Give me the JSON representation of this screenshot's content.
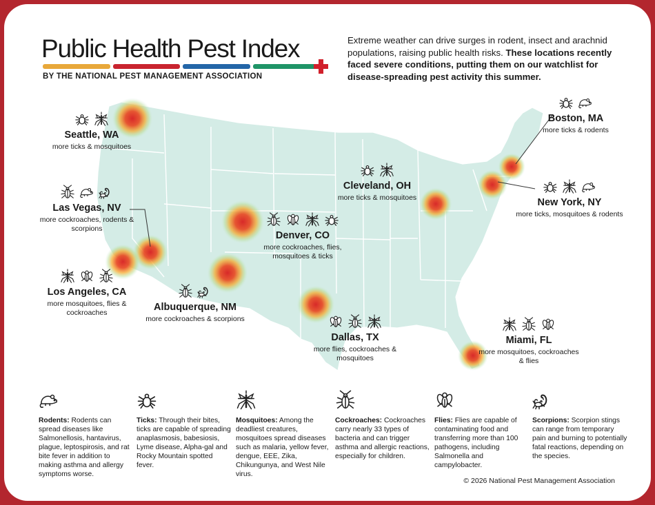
{
  "header": {
    "title": "Public Health Pest Index",
    "subtitle": "BY THE NATIONAL PEST MANAGEMENT ASSOCIATION",
    "bar_colors": [
      "#e8a83a",
      "#c9242f",
      "#2366a8",
      "#1f9467"
    ]
  },
  "intro": {
    "text_plain": "Extreme weather can drive surges in rodent, insect and arachnid populations, raising public health risks. ",
    "text_bold": "These locations recently faced severe conditions, putting them on our watchlist for disease-spreading pest activity this summer."
  },
  "cities": [
    {
      "name": "Seattle, WA",
      "desc": "more ticks & mosquitoes",
      "icons": [
        "tick-icon",
        "mosquito-icon"
      ]
    },
    {
      "name": "Las Vegas, NV",
      "desc": "more cockroaches, rodents & scorpions",
      "icons": [
        "cockroach-icon",
        "rodent-icon",
        "scorpion-icon"
      ]
    },
    {
      "name": "Los Angeles, CA",
      "desc": "more mosquitoes, flies & cockroaches",
      "icons": [
        "mosquito-icon",
        "fly-icon",
        "cockroach-icon"
      ]
    },
    {
      "name": "Albuquerque, NM",
      "desc": "more cockroaches & scorpions",
      "icons": [
        "cockroach-icon",
        "scorpion-icon"
      ]
    },
    {
      "name": "Denver, CO",
      "desc": "more cockroaches, flies, mosquitoes & ticks",
      "icons": [
        "cockroach-icon",
        "fly-icon",
        "mosquito-icon",
        "tick-icon"
      ]
    },
    {
      "name": "Dallas, TX",
      "desc": "more flies, cockroaches & mosquitoes",
      "icons": [
        "fly-icon",
        "cockroach-icon",
        "mosquito-icon"
      ]
    },
    {
      "name": "Cleveland, OH",
      "desc": "more ticks & mosquitoes",
      "icons": [
        "tick-icon",
        "mosquito-icon"
      ]
    },
    {
      "name": "Boston, MA",
      "desc": "more ticks & rodents",
      "icons": [
        "tick-icon",
        "rodent-icon"
      ]
    },
    {
      "name": "New York, NY",
      "desc": "more ticks, mosquitoes & rodents",
      "icons": [
        "tick-icon",
        "mosquito-icon",
        "rodent-icon"
      ]
    },
    {
      "name": "Miami, FL",
      "desc": "more mosquitoes, cockroaches & flies",
      "icons": [
        "mosquito-icon",
        "cockroach-icon",
        "fly-icon"
      ]
    }
  ],
  "legend": [
    {
      "title": "Rodents:",
      "text": "Rodents can spread diseases like Salmonellosis, hantavirus, plague, leptospirosis, and rat bite fever in addition to making asthma and allergy symptoms worse.",
      "icon": "rodent-icon"
    },
    {
      "title": "Ticks:",
      "text": "Through their bites, ticks are capable of spreading anaplasmosis, babesiosis, Lyme disease, Alpha-gal and Rocky Mountain spotted fever.",
      "icon": "tick-icon"
    },
    {
      "title": "Mosquitoes:",
      "text": "Among the deadliest creatures, mosquitoes spread diseases such as malaria, yellow fever, dengue, EEE, Zika, Chikungunya, and West Nile virus.",
      "icon": "mosquito-icon"
    },
    {
      "title": "Cockroaches:",
      "text": "Cockroaches carry nearly 33 types of bacteria and can trigger asthma and allergic reactions, especially for children.",
      "icon": "cockroach-icon"
    },
    {
      "title": "Flies:",
      "text": "Flies are capable of contaminating food and transferring more than 100 pathogens, including Salmonella and campylobacter.",
      "icon": "fly-icon"
    },
    {
      "title": "Scorpions:",
      "text": "Scorpion stings can range from temporary pain and burning to potentially fatal reactions, depending on the species.",
      "icon": "scorpion-icon"
    }
  ],
  "copyright": "© 2026 National Pest Management Association",
  "colors": {
    "frame": "#b3262e",
    "land": "#d4ece6",
    "state_line": "#ffffff",
    "hotspot_core": "#d81f1f",
    "hotspot_mid": "#f6a623",
    "hotspot_outer": "#9fd39a"
  }
}
